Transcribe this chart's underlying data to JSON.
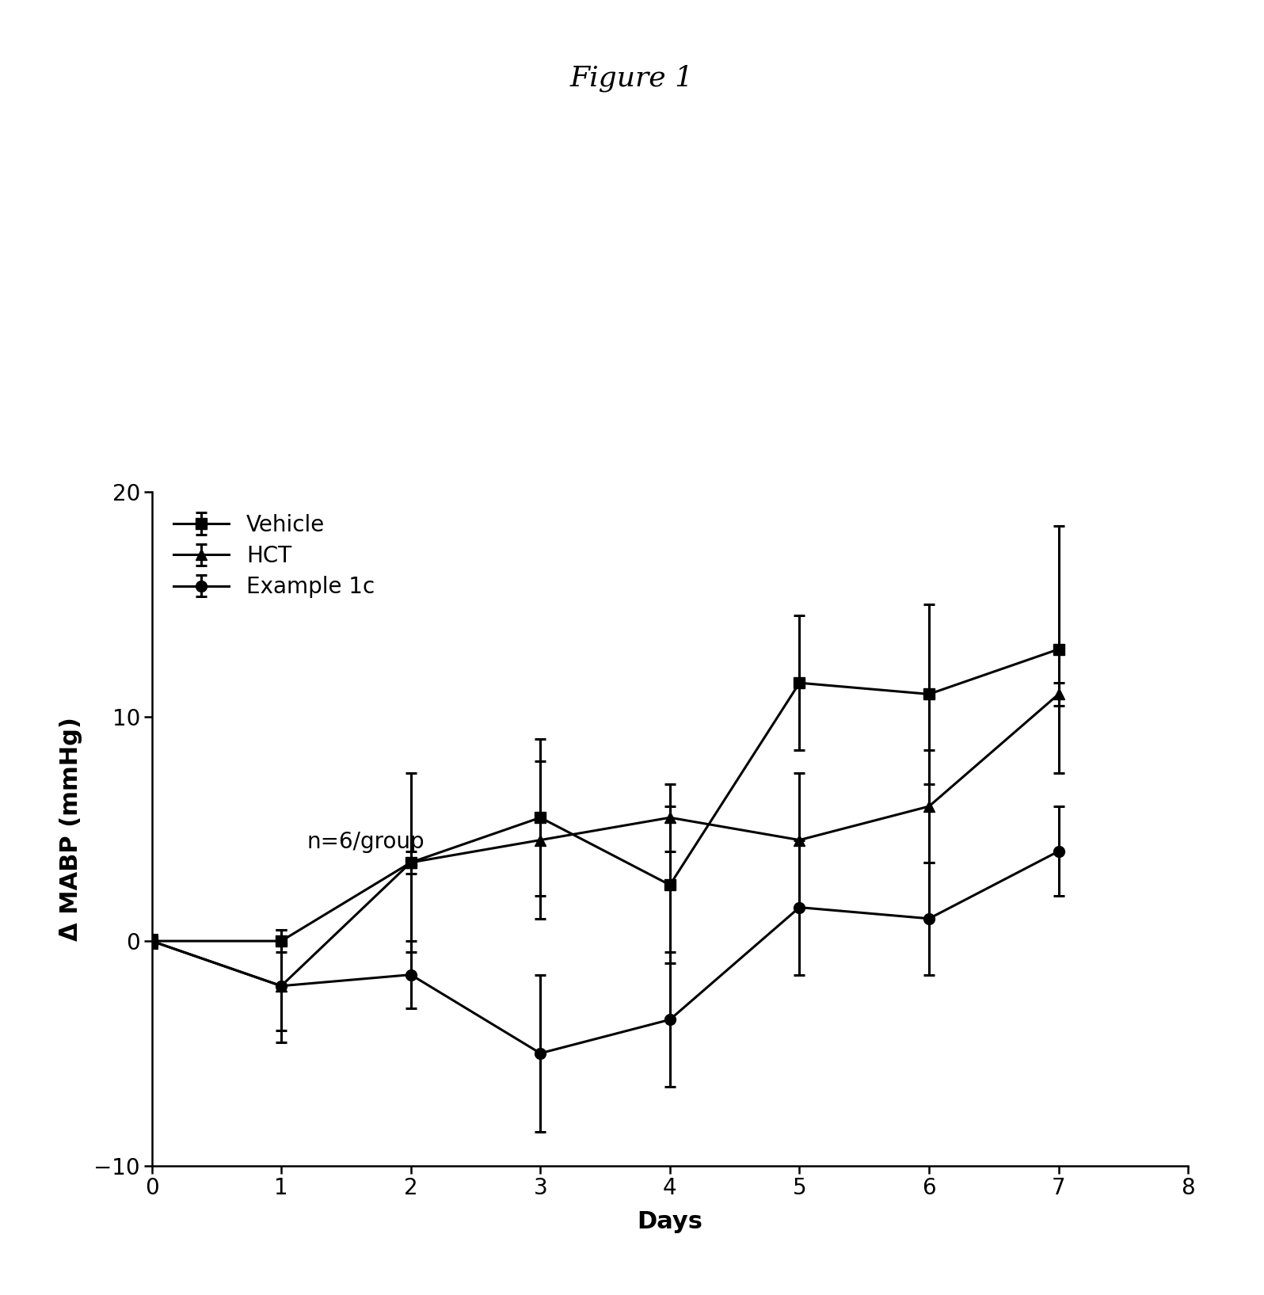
{
  "title": "Figure 1",
  "xlabel": "Days",
  "ylabel": "Δ MABP (mmHg)",
  "xlim": [
    0,
    8
  ],
  "ylim": [
    -10,
    20
  ],
  "xticks": [
    0,
    1,
    2,
    3,
    4,
    5,
    6,
    7,
    8
  ],
  "yticks": [
    -10,
    0,
    10,
    20
  ],
  "x": [
    0,
    1,
    2,
    3,
    4,
    5,
    6,
    7
  ],
  "vehicle_y": [
    0,
    0,
    3.5,
    5.5,
    2.5,
    11.5,
    11.0,
    13.0
  ],
  "vehicle_yerr": [
    0.3,
    0.5,
    4.0,
    3.5,
    3.5,
    3.0,
    4.0,
    5.5
  ],
  "hct_y": [
    0,
    -2.0,
    3.5,
    4.5,
    5.5,
    4.5,
    6.0,
    11.0
  ],
  "hct_yerr": [
    0.3,
    2.0,
    0.5,
    3.5,
    1.5,
    3.0,
    2.5,
    0.5
  ],
  "ex1c_y": [
    0,
    -2.0,
    -1.5,
    -5.0,
    -3.5,
    1.5,
    1.0,
    4.0
  ],
  "ex1c_yerr": [
    0.3,
    2.5,
    1.5,
    3.5,
    3.0,
    3.0,
    2.5,
    2.0
  ],
  "vehicle_label": "Vehicle",
  "hct_label": "HCT",
  "ex1c_label": "Example 1c",
  "annotation": "n=6/group",
  "color": "#000000",
  "linewidth": 2.2,
  "markersize": 10,
  "capsize": 5,
  "background_color": "#ffffff",
  "title_fontsize": 26,
  "label_fontsize": 22,
  "tick_fontsize": 20,
  "legend_fontsize": 20,
  "annotation_fontsize": 20
}
